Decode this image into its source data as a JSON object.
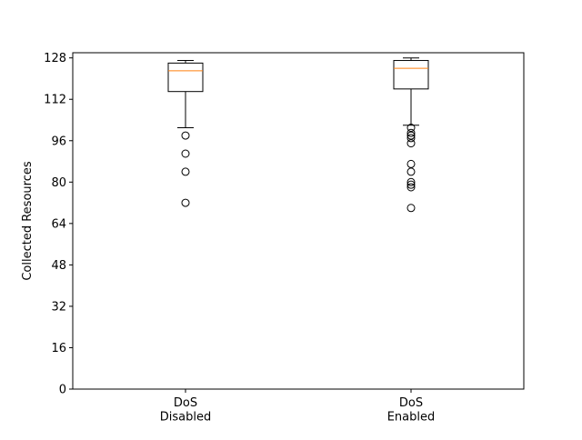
{
  "chart_data": {
    "type": "box",
    "title": "",
    "xlabel": "",
    "ylabel": "Collected Resources",
    "ylim": [
      0,
      130
    ],
    "yticks": [
      0,
      16,
      32,
      48,
      64,
      80,
      96,
      112,
      128
    ],
    "categories": [
      "DoS\nDisabled",
      "DoS\nEnabled"
    ],
    "grid": false,
    "legend": "none",
    "series": [
      {
        "whisker_low": 101,
        "q1": 115,
        "median": 123,
        "q3": 126,
        "whisker_high": 127,
        "outliers": [
          72,
          84,
          91,
          98
        ]
      },
      {
        "whisker_low": 102,
        "q1": 116,
        "median": 124,
        "q3": 127,
        "whisker_high": 128,
        "outliers": [
          70,
          78,
          79,
          80,
          84,
          87,
          95,
          97,
          98,
          99,
          101
        ]
      }
    ],
    "colors": {
      "box": "#000000",
      "median": "#ff7f0e",
      "axes": "#000000",
      "background": "#ffffff"
    }
  }
}
